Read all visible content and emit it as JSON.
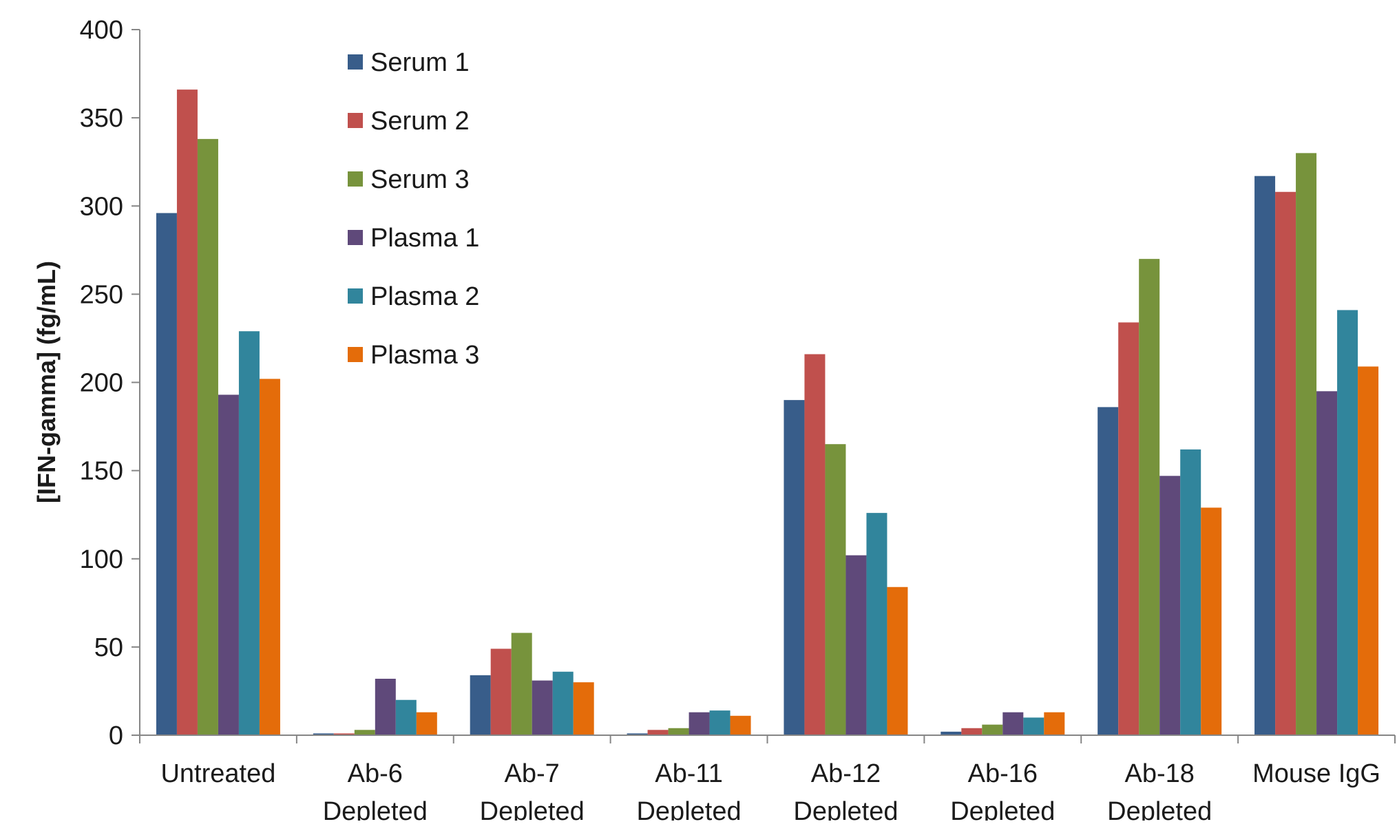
{
  "chart_data": {
    "type": "bar",
    "title": "",
    "xlabel": "",
    "ylabel": "[IFN-gamma] (fg/mL)",
    "ylim": [
      0,
      400
    ],
    "yticks": [
      0,
      50,
      100,
      150,
      200,
      250,
      300,
      350,
      400
    ],
    "grid": false,
    "legend_position": "top-left",
    "categories": [
      [
        "Untreated"
      ],
      [
        "Ab-6",
        "Depleted"
      ],
      [
        "Ab-7",
        "Depleted"
      ],
      [
        "Ab-11",
        "Depleted"
      ],
      [
        "Ab-12",
        "Depleted"
      ],
      [
        "Ab-16",
        "Depleted"
      ],
      [
        "Ab-18",
        "Depleted"
      ],
      [
        "Mouse IgG"
      ]
    ],
    "series": [
      {
        "name": "Serum 1",
        "color": "#385D8A",
        "values": [
          296,
          1,
          34,
          1,
          190,
          2,
          186,
          317
        ]
      },
      {
        "name": "Serum 2",
        "color": "#C0504D",
        "values": [
          366,
          1,
          49,
          3,
          216,
          4,
          234,
          308
        ]
      },
      {
        "name": "Serum 3",
        "color": "#77933C",
        "values": [
          338,
          3,
          58,
          4,
          165,
          6,
          270,
          330
        ]
      },
      {
        "name": "Plasma 1",
        "color": "#5F497A",
        "values": [
          193,
          32,
          31,
          13,
          102,
          13,
          147,
          195
        ]
      },
      {
        "name": "Plasma 2",
        "color": "#31859C",
        "values": [
          229,
          20,
          36,
          14,
          126,
          10,
          162,
          241
        ]
      },
      {
        "name": "Plasma 3",
        "color": "#E46C0A",
        "values": [
          202,
          13,
          30,
          11,
          84,
          13,
          129,
          209
        ]
      }
    ]
  }
}
